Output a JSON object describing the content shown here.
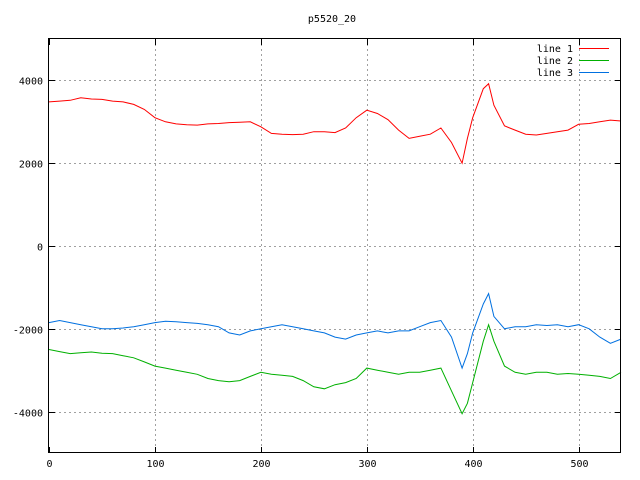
{
  "chart_data": {
    "type": "line",
    "title": "p5520_20",
    "xlabel": "",
    "ylabel": "",
    "xlim": [
      0,
      540
    ],
    "ylim": [
      -5000,
      5000
    ],
    "xticks": [
      0,
      100,
      200,
      300,
      400,
      500
    ],
    "yticks": [
      -4000,
      -2000,
      0,
      2000,
      4000
    ],
    "grid": true,
    "legend_position": "top-right",
    "series": [
      {
        "name": "line 1",
        "color": "#ff0000",
        "x": [
          0,
          10,
          20,
          30,
          40,
          50,
          60,
          70,
          80,
          90,
          100,
          110,
          120,
          130,
          140,
          150,
          160,
          170,
          180,
          190,
          200,
          210,
          220,
          230,
          240,
          250,
          260,
          270,
          280,
          290,
          300,
          310,
          320,
          330,
          340,
          350,
          360,
          370,
          380,
          390,
          395,
          400,
          410,
          415,
          420,
          430,
          440,
          450,
          460,
          470,
          480,
          490,
          500,
          510,
          520,
          530,
          540
        ],
        "values": [
          3480,
          3500,
          3520,
          3580,
          3550,
          3540,
          3500,
          3480,
          3420,
          3300,
          3100,
          3000,
          2950,
          2930,
          2920,
          2950,
          2960,
          2980,
          2990,
          3000,
          2880,
          2720,
          2700,
          2690,
          2700,
          2760,
          2760,
          2740,
          2850,
          3100,
          3280,
          3200,
          3050,
          2800,
          2600,
          2650,
          2700,
          2850,
          2500,
          2000,
          2600,
          3100,
          3800,
          3920,
          3400,
          2900,
          2800,
          2700,
          2680,
          2720,
          2760,
          2800,
          2940,
          2960,
          3000,
          3040,
          3020
        ]
      },
      {
        "name": "line 2",
        "color": "#00b000",
        "x": [
          0,
          10,
          20,
          30,
          40,
          50,
          60,
          70,
          80,
          90,
          100,
          110,
          120,
          130,
          140,
          150,
          160,
          170,
          180,
          190,
          200,
          210,
          220,
          230,
          240,
          250,
          260,
          270,
          280,
          290,
          300,
          310,
          320,
          330,
          340,
          350,
          360,
          370,
          380,
          390,
          395,
          400,
          410,
          415,
          420,
          430,
          440,
          450,
          460,
          470,
          480,
          490,
          500,
          510,
          520,
          530,
          540
        ],
        "values": [
          -2500,
          -2550,
          -2600,
          -2580,
          -2560,
          -2590,
          -2600,
          -2650,
          -2700,
          -2800,
          -2900,
          -2950,
          -3000,
          -3050,
          -3100,
          -3200,
          -3250,
          -3280,
          -3250,
          -3150,
          -3050,
          -3100,
          -3120,
          -3150,
          -3250,
          -3400,
          -3450,
          -3350,
          -3300,
          -3200,
          -2950,
          -3000,
          -3050,
          -3100,
          -3050,
          -3050,
          -3000,
          -2950,
          -3500,
          -4050,
          -3800,
          -3300,
          -2300,
          -1900,
          -2300,
          -2900,
          -3050,
          -3100,
          -3050,
          -3050,
          -3100,
          -3080,
          -3100,
          -3120,
          -3150,
          -3200,
          -3050
        ]
      },
      {
        "name": "line 3",
        "color": "#0070e0",
        "x": [
          0,
          10,
          20,
          30,
          40,
          50,
          60,
          70,
          80,
          90,
          100,
          110,
          120,
          130,
          140,
          150,
          160,
          170,
          180,
          190,
          200,
          210,
          220,
          230,
          240,
          250,
          260,
          270,
          280,
          290,
          300,
          310,
          320,
          330,
          340,
          350,
          360,
          370,
          380,
          390,
          395,
          400,
          410,
          415,
          420,
          430,
          440,
          450,
          460,
          470,
          480,
          490,
          500,
          510,
          520,
          530,
          540
        ],
        "values": [
          -1850,
          -1800,
          -1850,
          -1900,
          -1950,
          -2000,
          -2000,
          -1980,
          -1950,
          -1900,
          -1850,
          -1820,
          -1830,
          -1850,
          -1870,
          -1900,
          -1950,
          -2100,
          -2150,
          -2050,
          -2000,
          -1950,
          -1900,
          -1950,
          -2000,
          -2050,
          -2100,
          -2200,
          -2250,
          -2150,
          -2100,
          -2050,
          -2100,
          -2050,
          -2050,
          -1950,
          -1850,
          -1800,
          -2200,
          -2950,
          -2600,
          -2100,
          -1400,
          -1150,
          -1700,
          -2000,
          -1950,
          -1950,
          -1900,
          -1920,
          -1900,
          -1950,
          -1900,
          -2000,
          -2200,
          -2350,
          -2250
        ]
      }
    ]
  }
}
